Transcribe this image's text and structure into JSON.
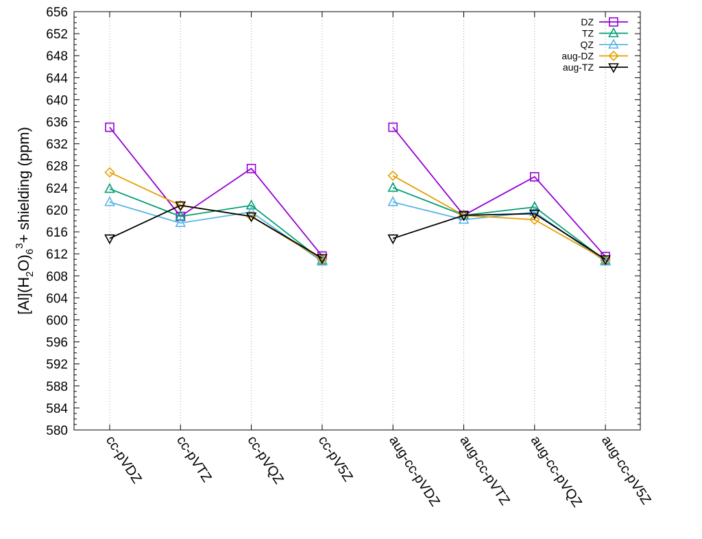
{
  "chart_data": {
    "type": "line",
    "title": "",
    "xlabel": "",
    "ylabel": {
      "prefix": "[Al](H",
      "sub1": "2",
      "middle": "O)",
      "sub2": "6",
      "sup": "3",
      "suffix": "+ shielding (ppm)"
    },
    "ylim": [
      580,
      656
    ],
    "yticks": [
      580,
      584,
      588,
      592,
      596,
      600,
      604,
      608,
      612,
      616,
      620,
      624,
      628,
      632,
      636,
      640,
      644,
      648,
      652,
      656
    ],
    "categories": [
      "cc-pVDZ",
      "cc-pVTZ",
      "cc-pVQZ",
      "cc-pV5Z",
      "aug-cc-pVDZ",
      "aug-cc-pVTZ",
      "aug-cc-pVQZ",
      "aug-cc-pV5Z"
    ],
    "grid": "vertical dotted",
    "legend_position": "top-right",
    "series": [
      {
        "name": "DZ",
        "color": "#9400D3",
        "marker": "square",
        "segments": [
          [
            0,
            1,
            2,
            3
          ],
          [
            4,
            5,
            6,
            7
          ]
        ],
        "values": [
          635.0,
          618.8,
          627.5,
          611.6,
          635.0,
          619.0,
          626.0,
          611.5
        ]
      },
      {
        "name": "TZ",
        "color": "#009E73",
        "marker": "triangle-up",
        "segments": [
          [
            0,
            1,
            2,
            3
          ],
          [
            4,
            5,
            6,
            7
          ]
        ],
        "values": [
          623.8,
          618.8,
          620.8,
          610.8,
          624.0,
          619.0,
          620.5,
          610.8
        ]
      },
      {
        "name": "QZ",
        "color": "#56B4E9",
        "marker": "triangle-up",
        "segments": [
          [
            0,
            1,
            2,
            3
          ],
          [
            4,
            5,
            6,
            7
          ]
        ],
        "values": [
          621.4,
          617.6,
          619.6,
          610.6,
          621.4,
          618.2,
          619.6,
          610.6
        ]
      },
      {
        "name": "aug-DZ",
        "color": "#E69F00",
        "marker": "diamond",
        "segments": [
          [
            0,
            1,
            2,
            3
          ],
          [
            4,
            5,
            6,
            7
          ]
        ],
        "values": [
          626.8,
          620.8,
          618.8,
          611.0,
          626.2,
          619.0,
          618.2,
          610.9
        ]
      },
      {
        "name": "aug-TZ",
        "color": "#000000",
        "marker": "triangle-down",
        "segments": [
          [
            0,
            1,
            2,
            3
          ],
          [
            4,
            5,
            6,
            7
          ]
        ],
        "values": [
          614.8,
          620.8,
          618.8,
          611.2,
          614.8,
          619.0,
          619.3,
          611.0
        ]
      }
    ]
  }
}
